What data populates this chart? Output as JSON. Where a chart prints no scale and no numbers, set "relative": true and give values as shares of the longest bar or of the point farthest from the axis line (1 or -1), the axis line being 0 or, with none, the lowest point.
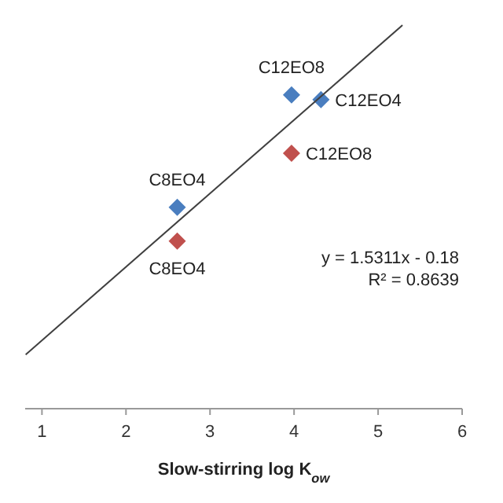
{
  "chart_data": {
    "type": "scatter",
    "relative": true,
    "xlabel": "Slow-stirring log K$_{ow}$",
    "xlim": [
      0.8,
      6
    ],
    "xticks": [
      1,
      2,
      3,
      4,
      5,
      6
    ],
    "grid": false,
    "series": [
      {
        "color": "#4a7ebf",
        "marker": "diamond",
        "x": [
          3.97,
          4.32,
          2.61
        ],
        "values": [
          0.818,
          0.806,
          0.525
        ]
      },
      {
        "color": "#c0504d",
        "marker": "diamond",
        "x": [
          3.97,
          2.61
        ],
        "values": [
          0.666,
          0.437
        ]
      },
      {
        "type": "line",
        "marker": "none",
        "color": "#404040",
        "x": [
          0.806,
          5.29
        ],
        "values": [
          0.141,
          1
        ]
      }
    ],
    "annotations": [
      {
        "text": "C12EO8",
        "x": 3.97,
        "y": 0.818
      },
      {
        "text": "C12EO4",
        "x": 4.32,
        "y": 0.806
      },
      {
        "text": "C12EO8",
        "x": 3.97,
        "y": 0.666
      },
      {
        "text": "C8EO4",
        "x": 2.61,
        "y": 0.525
      },
      {
        "text": "C8EO4",
        "x": 2.61,
        "y": 0.437
      },
      "y = 1.5311x - 0.18",
      "R² = 0.8639"
    ]
  }
}
